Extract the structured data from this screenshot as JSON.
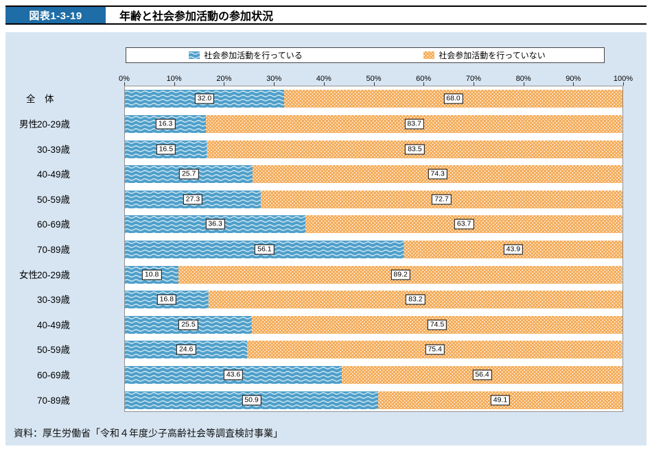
{
  "header": {
    "figure_label": "図表1-3-19",
    "title": "年齢と社会参加活動の参加状況"
  },
  "source": "資料：厚生労働省「令和４年度少子高齢社会等調査検討事業」",
  "colors": {
    "header_badge": "#1f6da6",
    "panel_bg": "#d7e5f2"
  },
  "chart_data": {
    "type": "bar",
    "orientation": "horizontal",
    "stacked": true,
    "unit": "%",
    "axis": {
      "min": 0,
      "max": 100,
      "tick_step": 10,
      "tick_suffix": "%"
    },
    "legend_position": "top",
    "series": [
      {
        "name": "社会参加活動を行っている",
        "color": "#4f9fca",
        "pattern": "wave",
        "pattern_color": "#c8e4f0"
      },
      {
        "name": "社会参加活動を行っていない",
        "color": "#f5ab57",
        "pattern": "dots",
        "pattern_color": "#ffffff"
      }
    ],
    "rows": [
      {
        "group": "",
        "label": "全　体",
        "is_total": true,
        "values": [
          32.0,
          68.0
        ]
      },
      {
        "group": "男性",
        "label": "20-29歳",
        "is_total": false,
        "values": [
          16.3,
          83.7
        ]
      },
      {
        "group": "",
        "label": "30-39歳",
        "is_total": false,
        "values": [
          16.5,
          83.5
        ]
      },
      {
        "group": "",
        "label": "40-49歳",
        "is_total": false,
        "values": [
          25.7,
          74.3
        ]
      },
      {
        "group": "",
        "label": "50-59歳",
        "is_total": false,
        "values": [
          27.3,
          72.7
        ]
      },
      {
        "group": "",
        "label": "60-69歳",
        "is_total": false,
        "values": [
          36.3,
          63.7
        ]
      },
      {
        "group": "",
        "label": "70-89歳",
        "is_total": false,
        "values": [
          56.1,
          43.9
        ]
      },
      {
        "group": "女性",
        "label": "20-29歳",
        "is_total": false,
        "values": [
          10.8,
          89.2
        ]
      },
      {
        "group": "",
        "label": "30-39歳",
        "is_total": false,
        "values": [
          16.8,
          83.2
        ]
      },
      {
        "group": "",
        "label": "40-49歳",
        "is_total": false,
        "values": [
          25.5,
          74.5
        ]
      },
      {
        "group": "",
        "label": "50-59歳",
        "is_total": false,
        "values": [
          24.6,
          75.4
        ]
      },
      {
        "group": "",
        "label": "60-69歳",
        "is_total": false,
        "values": [
          43.6,
          56.4
        ]
      },
      {
        "group": "",
        "label": "70-89歳",
        "is_total": false,
        "values": [
          50.9,
          49.1
        ]
      }
    ]
  }
}
